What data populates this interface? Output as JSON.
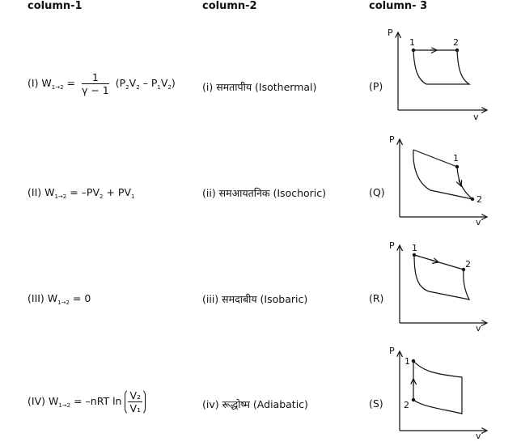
{
  "headers": {
    "col1": "column-1",
    "col2": "column-2",
    "col3": "column- 3"
  },
  "rows": [
    {
      "col1": {
        "prefix": "(I) W",
        "sub": "1→2",
        "eq": " = ",
        "frac_num": "1",
        "frac_den": "γ − 1",
        "tail_a": "(P",
        "s1": "2",
        "tail_b": "V",
        "s2": "2",
        "tail_c": " – P",
        "s3": "1",
        "tail_d": "V",
        "s4": "2",
        "tail_e": ")"
      },
      "col2": "(i) समतापीय (Isothermal)",
      "col3": "(P)"
    },
    {
      "col1": {
        "prefix": "(II) W",
        "sub": "1→2",
        "rest_a": " = –PV",
        "s1": "2",
        "rest_b": " + PV",
        "s2": "1"
      },
      "col2": "(ii) समआयतनिक (Isochoric)",
      "col3": "(Q)"
    },
    {
      "col1": {
        "prefix": "(III) W",
        "sub": "1→2",
        "rest": " = 0"
      },
      "col2": "(iii) समदाबीय (Isobaric)",
      "col3": "(R)"
    },
    {
      "col1": {
        "prefix": "(IV) W",
        "sub": "1→2",
        "rest": " = –nRT ln",
        "frac_num": "V₂",
        "frac_den": "V₁"
      },
      "col2": "(iv) रूद्धोष्म (Adiabatic)",
      "col3": "(S)"
    }
  ],
  "graphs": [
    {
      "ylabel": "P",
      "xlabel": "v",
      "pt1": "1",
      "pt2": "2"
    },
    {
      "ylabel": "P",
      "xlabel": "v",
      "pt1": "1",
      "pt2": "2"
    },
    {
      "ylabel": "P",
      "xlabel": "v",
      "pt1": "1",
      "pt2": "2"
    },
    {
      "ylabel": "P",
      "xlabel": "v",
      "pt1": "1",
      "pt2": "2"
    }
  ]
}
